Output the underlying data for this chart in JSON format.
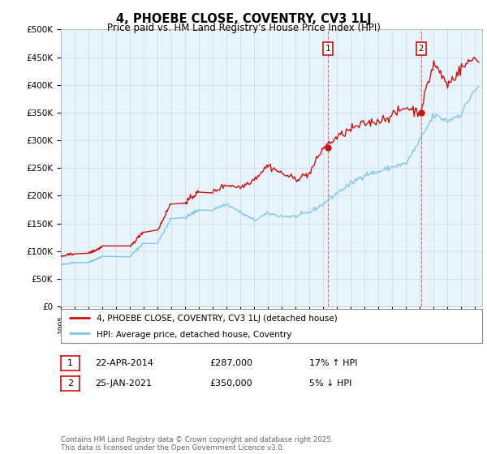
{
  "title": "4, PHOEBE CLOSE, COVENTRY, CV3 1LJ",
  "subtitle": "Price paid vs. HM Land Registry's House Price Index (HPI)",
  "ylabel_ticks": [
    "£0",
    "£50K",
    "£100K",
    "£150K",
    "£200K",
    "£250K",
    "£300K",
    "£350K",
    "£400K",
    "£450K",
    "£500K"
  ],
  "ylim": [
    0,
    500000
  ],
  "xlim_start": 1995.0,
  "xlim_end": 2025.5,
  "purchase1_x": 2014.31,
  "purchase1_y": 287000,
  "purchase2_x": 2021.07,
  "purchase2_y": 350000,
  "legend_line1": "4, PHOEBE CLOSE, COVENTRY, CV3 1LJ (detached house)",
  "legend_line2": "HPI: Average price, detached house, Coventry",
  "table_row1": [
    "1",
    "22-APR-2014",
    "£287,000",
    "17% ↑ HPI"
  ],
  "table_row2": [
    "2",
    "25-JAN-2021",
    "£350,000",
    "5% ↓ HPI"
  ],
  "footer": "Contains HM Land Registry data © Crown copyright and database right 2025.\nThis data is licensed under the Open Government Licence v3.0.",
  "hpi_color": "#7ec8e3",
  "price_color": "#cc1111",
  "background_color": "#e8f4fb",
  "grid_color": "#c8d8e8",
  "hpi_key_points": {
    "1995": 75000,
    "1997": 80000,
    "2000": 90000,
    "2002": 115000,
    "2004": 160000,
    "2006": 175000,
    "2007": 185000,
    "2008": 170000,
    "2009": 155000,
    "2010": 168000,
    "2011": 163000,
    "2012": 162000,
    "2013": 170000,
    "2014": 185000,
    "2015": 205000,
    "2016": 222000,
    "2017": 238000,
    "2018": 243000,
    "2019": 252000,
    "2020": 258000,
    "2021": 300000,
    "2022": 345000,
    "2023": 335000,
    "2024": 348000,
    "2025": 395000
  },
  "price_key_points": {
    "1995": 90000,
    "1997": 96000,
    "2000": 107000,
    "2002": 137000,
    "2004": 188000,
    "2006": 207000,
    "2007": 220000,
    "2008": 215000,
    "2009": 230000,
    "2010": 255000,
    "2011": 240000,
    "2012": 230000,
    "2013": 240000,
    "2014": 287000,
    "2015": 305000,
    "2016": 320000,
    "2017": 330000,
    "2018": 335000,
    "2019": 345000,
    "2020": 360000,
    "2021": 350000,
    "2022": 440000,
    "2023": 400000,
    "2024": 430000,
    "2025": 450000
  }
}
